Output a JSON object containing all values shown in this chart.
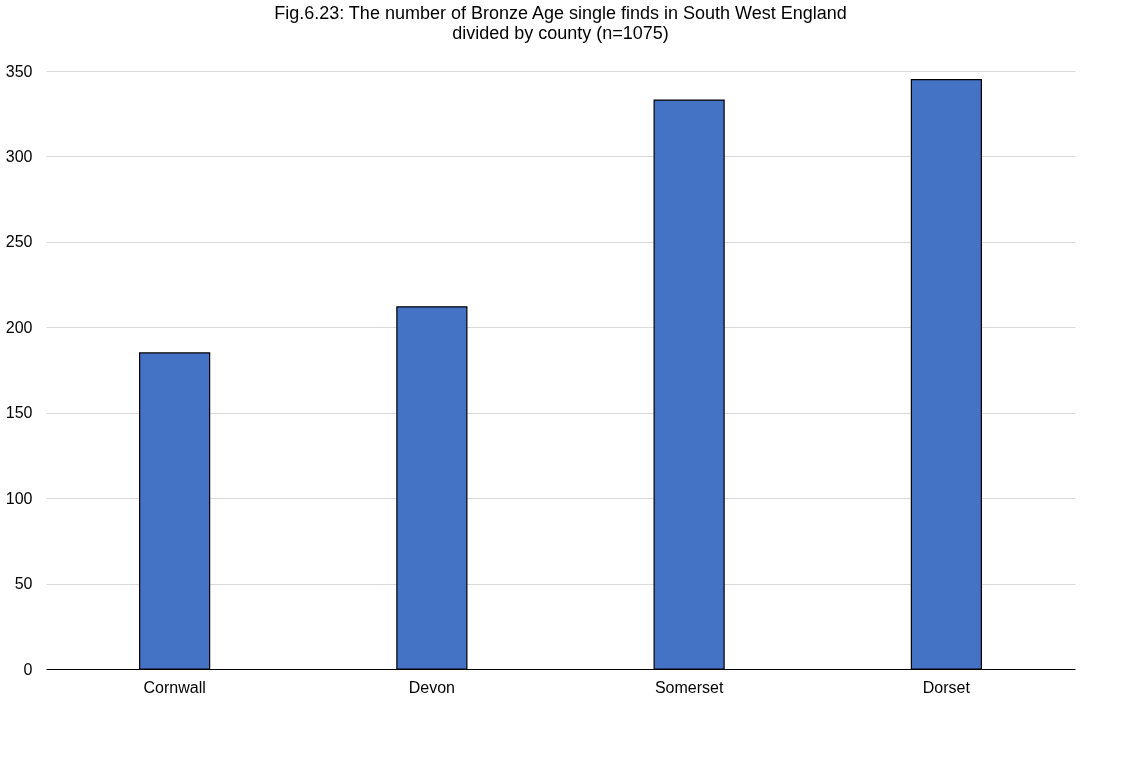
{
  "chart_data": {
    "type": "bar",
    "title": "Fig.6.23: The number of Bronze Age single finds in South West England\ndivided by county (n=1075)",
    "categories": [
      "Cornwall",
      "Devon",
      "Somerset",
      "Dorset"
    ],
    "values": [
      185,
      212,
      333,
      345
    ],
    "color": "#4472c4",
    "ylim": [
      0,
      350
    ],
    "yticks": [
      0,
      50,
      100,
      150,
      200,
      250,
      300,
      350
    ],
    "grid": "y"
  }
}
